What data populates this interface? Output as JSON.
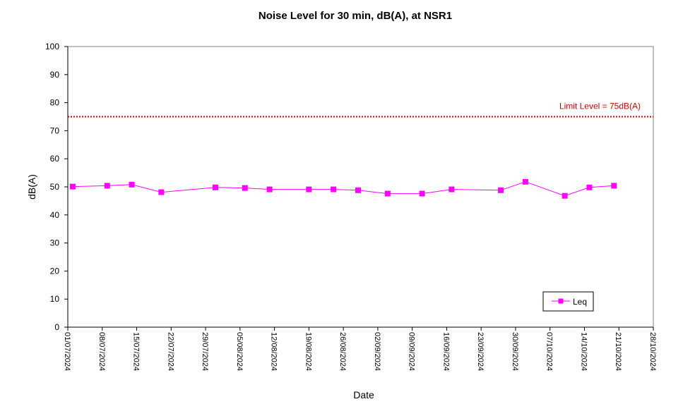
{
  "chart_data": {
    "type": "line",
    "title": "Noise Level for 30 min, dB(A), at NSR1",
    "xlabel": "Date",
    "ylabel": "dB(A)",
    "ylim": [
      0,
      100
    ],
    "yticks": [
      0,
      10,
      20,
      30,
      40,
      50,
      60,
      70,
      80,
      90,
      100
    ],
    "xlim": [
      "2024-07-01",
      "2024-10-28"
    ],
    "xtick_labels": [
      "01/07/2024",
      "08/07/2024",
      "15/07/2024",
      "22/07/2024",
      "29/07/2024",
      "05/08/2024",
      "12/08/2024",
      "19/08/2024",
      "26/08/2024",
      "02/09/2024",
      "09/09/2024",
      "16/09/2024",
      "23/09/2024",
      "30/09/2024",
      "07/10/2024",
      "14/10/2024",
      "21/10/2024",
      "28/10/2024"
    ],
    "series": [
      {
        "name": "Leq",
        "color": "#ff00ff",
        "marker": "square",
        "points": [
          {
            "x": "2024-07-02",
            "y": 50.1
          },
          {
            "x": "2024-07-09",
            "y": 50.4
          },
          {
            "x": "2024-07-14",
            "y": 50.8
          },
          {
            "x": "2024-07-20",
            "y": 48.1
          },
          {
            "x": "2024-07-31",
            "y": 49.8
          },
          {
            "x": "2024-08-06",
            "y": 49.6
          },
          {
            "x": "2024-08-11",
            "y": 49.1
          },
          {
            "x": "2024-08-19",
            "y": 49.1
          },
          {
            "x": "2024-08-24",
            "y": 49.1
          },
          {
            "x": "2024-08-29",
            "y": 48.8
          },
          {
            "x": "2024-09-04",
            "y": 47.6
          },
          {
            "x": "2024-09-11",
            "y": 47.6
          },
          {
            "x": "2024-09-17",
            "y": 49.1
          },
          {
            "x": "2024-09-27",
            "y": 48.8
          },
          {
            "x": "2024-10-02",
            "y": 51.8
          },
          {
            "x": "2024-10-10",
            "y": 46.8
          },
          {
            "x": "2024-10-15",
            "y": 49.8
          },
          {
            "x": "2024-10-20",
            "y": 50.4
          }
        ]
      }
    ],
    "limit_line": {
      "value": 75,
      "label": "Limit Level  = 75dB(A)",
      "color": "#cc0000",
      "style": "dotted"
    },
    "legend": {
      "placement": "bottom-right"
    },
    "grid": false
  }
}
